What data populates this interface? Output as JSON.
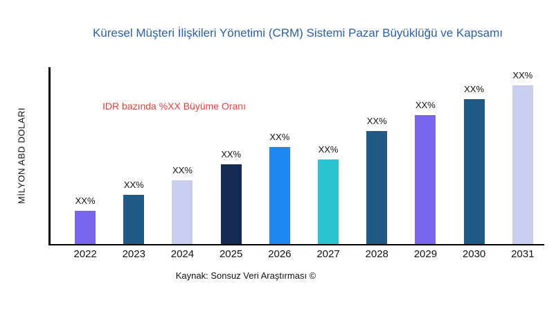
{
  "title": "Küresel Müşteri İlişkileri Yönetimi (CRM) Sistemi Pazar Büyüklüğü ve Kapsamı",
  "title_color": "#2d5fa5",
  "y_axis_label": "MİLYON ABD DOLARI",
  "annotation": {
    "text": "IDR bazında %XX Büyüme Oranı",
    "color": "#f23a3a"
  },
  "source": "Kaynak: Sonsuz Veri Araştırması ©",
  "chart_data": {
    "type": "bar",
    "title": "Küresel Müşteri İlişkileri Yönetimi (CRM) Sistemi Pazar Büyüklüğü ve Kapsamı",
    "xlabel": "",
    "ylabel": "MİLYON ABD DOLARI",
    "categories": [
      "2022",
      "2023",
      "2024",
      "2025",
      "2026",
      "2027",
      "2028",
      "2029",
      "2030",
      "2031"
    ],
    "values": [
      21,
      31,
      40,
      50,
      61,
      53,
      71,
      81,
      91,
      100
    ],
    "values_are_relative_percent_of_tallest_bar": true,
    "value_labels": [
      "XX%",
      "XX%",
      "XX%",
      "XX%",
      "XX%",
      "XX%",
      "XX%",
      "XX%",
      "XX%",
      "XX%"
    ],
    "bar_colors": [
      "#7a66ee",
      "#1f5b84",
      "#c9cdee",
      "#152a52",
      "#1d86f0",
      "#2bc2cf",
      "#1f5b84",
      "#7a66ee",
      "#1f5b84",
      "#c9cdee"
    ],
    "ylim": [
      0,
      110
    ],
    "grid": false,
    "legend": false
  }
}
